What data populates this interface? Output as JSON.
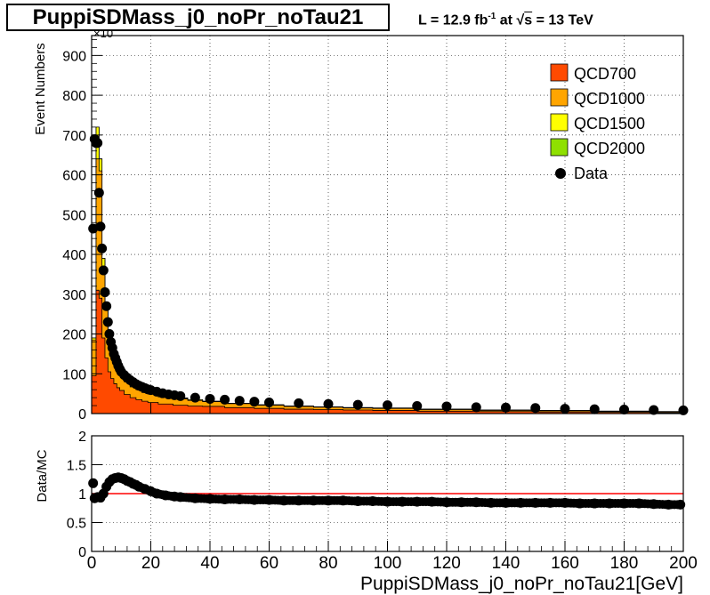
{
  "title": "PuppiSDMass_j0_noPr_noTau21",
  "lumi": {
    "pre": "L = 12.9 fb",
    "sup": "-1",
    "mid": " at  ",
    "root": "s",
    "post": " = 13 TeV"
  },
  "exponent_label": "×10",
  "chart_data": [
    {
      "type": "area",
      "stacked": true,
      "title": "PuppiSDMass_j0_noPr_noTau21",
      "xlabel": "",
      "ylabel": "Event Numbers",
      "xlim": [
        0,
        200
      ],
      "ylim": [
        0,
        950
      ],
      "y_ticks": [
        0,
        100,
        200,
        300,
        400,
        500,
        600,
        700,
        800,
        900
      ],
      "grid": true,
      "legend_position": "top-right",
      "legend": [
        "QCD700",
        "QCD1000",
        "QCD1500",
        "QCD2000",
        "Data"
      ],
      "colors": {
        "QCD700": "#ff4a00",
        "QCD1000": "#ffa500",
        "QCD1500": "#ffff00",
        "QCD2000": "#8fe000",
        "Data": "#000000"
      },
      "x": [
        1,
        2,
        3,
        4,
        5,
        6,
        7,
        8,
        9,
        10,
        12,
        14,
        16,
        18,
        20,
        25,
        30,
        35,
        40,
        50,
        60,
        70,
        80,
        90,
        100,
        120,
        140,
        160,
        180,
        199
      ],
      "series": [
        {
          "name": "QCD700",
          "values": [
            95,
            310,
            290,
            190,
            140,
            105,
            88,
            75,
            65,
            58,
            48,
            40,
            35,
            31,
            28,
            24,
            21,
            19,
            18,
            15,
            13,
            11,
            10,
            9,
            8,
            6,
            5,
            4,
            3,
            2
          ]
        },
        {
          "name": "QCD1000",
          "values": [
            90,
            330,
            320,
            180,
            120,
            85,
            68,
            55,
            45,
            38,
            32,
            27,
            25,
            22,
            21,
            18,
            16,
            14,
            12,
            10,
            8,
            7,
            6,
            5,
            5,
            4,
            3,
            3,
            2,
            2
          ]
        },
        {
          "name": "QCD1500",
          "values": [
            5,
            80,
            30,
            20,
            10,
            8,
            6,
            5,
            4,
            3,
            3,
            2,
            2,
            2,
            2,
            2,
            2,
            2,
            1,
            1,
            1,
            1,
            1,
            1,
            1,
            1,
            1,
            1,
            1,
            1
          ]
        },
        {
          "name": "QCD2000",
          "values": [
            0,
            0,
            0,
            0,
            0,
            0,
            0,
            0,
            0,
            0,
            0,
            0,
            0,
            0,
            0,
            0,
            0,
            0,
            0,
            0,
            0,
            0,
            0,
            0,
            0,
            0,
            0,
            0,
            0,
            0
          ]
        }
      ],
      "data_points": {
        "name": "Data",
        "x": [
          0.5,
          1,
          1.5,
          2,
          2.5,
          3,
          3.5,
          4,
          4.5,
          5,
          5.5,
          6,
          6.5,
          7,
          7.5,
          8,
          8.5,
          9,
          9.5,
          10,
          11,
          12,
          13,
          14,
          15,
          16,
          17,
          18,
          19,
          20,
          22,
          24,
          26,
          28,
          30,
          35,
          40,
          45,
          50,
          55,
          60,
          70,
          80,
          90,
          100,
          110,
          120,
          130,
          140,
          150,
          160,
          170,
          180,
          190,
          200
        ],
        "y": [
          465,
          690,
          680,
          680,
          555,
          470,
          415,
          360,
          305,
          270,
          230,
          200,
          180,
          165,
          150,
          140,
          130,
          120,
          112,
          105,
          97,
          90,
          84,
          79,
          74,
          70,
          67,
          64,
          61,
          59,
          55,
          51,
          48,
          46,
          44,
          40,
          37,
          35,
          32,
          30,
          28,
          26,
          24,
          22,
          21,
          19,
          18,
          16,
          15,
          14,
          12,
          11,
          10,
          9,
          8
        ]
      }
    },
    {
      "type": "scatter",
      "xlabel": "PuppiSDMass_j0_noPr_noTau21[GeV]",
      "ylabel": "Data/MC",
      "xlim": [
        0,
        200
      ],
      "ylim": [
        0,
        2
      ],
      "y_ticks": [
        "0",
        "0.5",
        "1",
        "1.5",
        "2"
      ],
      "x_ticks": [
        0,
        20,
        40,
        60,
        80,
        100,
        120,
        140,
        160,
        180,
        200
      ],
      "grid": true,
      "reference_line": 1.0,
      "reference_color": "#ff0000",
      "x": [
        0.5,
        1,
        2,
        3,
        4,
        5,
        6,
        7,
        8,
        9,
        10,
        11,
        12,
        13,
        14,
        15,
        16,
        18,
        20,
        22,
        25,
        28,
        30,
        35,
        40,
        45,
        50,
        55,
        60,
        65,
        70,
        75,
        80,
        85,
        90,
        95,
        100,
        105,
        110,
        115,
        120,
        125,
        130,
        135,
        140,
        145,
        150,
        155,
        160,
        165,
        170,
        175,
        180,
        185,
        190,
        195,
        199
      ],
      "y": [
        1.18,
        0.92,
        0.94,
        0.93,
        1.0,
        1.12,
        1.2,
        1.25,
        1.27,
        1.28,
        1.27,
        1.25,
        1.22,
        1.2,
        1.17,
        1.15,
        1.12,
        1.08,
        1.04,
        1.0,
        0.97,
        0.95,
        0.94,
        0.92,
        0.91,
        0.9,
        0.9,
        0.89,
        0.89,
        0.88,
        0.88,
        0.88,
        0.88,
        0.88,
        0.87,
        0.87,
        0.86,
        0.86,
        0.86,
        0.86,
        0.85,
        0.85,
        0.85,
        0.84,
        0.84,
        0.84,
        0.84,
        0.84,
        0.84,
        0.83,
        0.83,
        0.83,
        0.83,
        0.83,
        0.82,
        0.81,
        0.81
      ]
    }
  ]
}
